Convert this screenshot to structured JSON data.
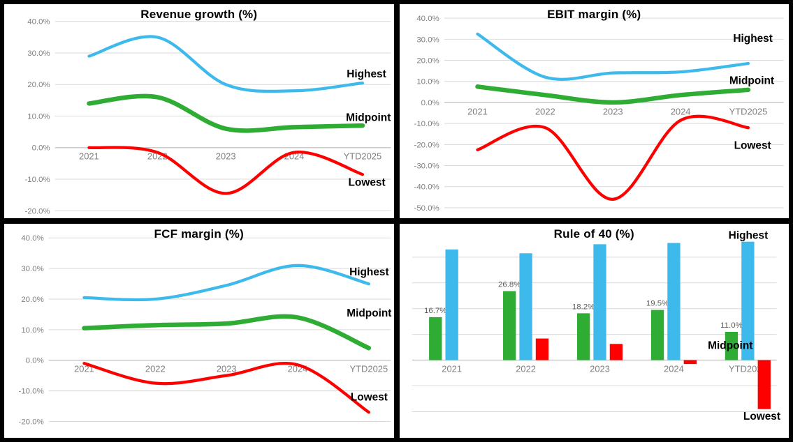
{
  "page": {
    "background": "#ffffff",
    "frame_color": "#000000"
  },
  "palette": {
    "highest": "#3DB9EB",
    "midpoint": "#2EAC34",
    "lowest": "#FF0000",
    "grid_line": "#d9d9d9",
    "zero_line": "#c4c4c4",
    "tick_text": "#7f7f7f",
    "data_label_text": "#595959",
    "title_text": "#000000",
    "series_label_text": "#000000"
  },
  "chart_data": [
    {
      "id": "revenue-growth",
      "type": "line",
      "title": "Revenue growth (%)",
      "categories": [
        "2021",
        "2022",
        "2023",
        "2024",
        "YTD2025"
      ],
      "series": [
        {
          "name": "Highest",
          "color_key": "highest",
          "values": [
            29,
            35,
            20,
            18,
            20.5
          ]
        },
        {
          "name": "Midpoint",
          "color_key": "midpoint",
          "values": [
            14,
            16,
            6,
            6.5,
            7
          ]
        },
        {
          "name": "Lowest",
          "color_key": "lowest",
          "values": [
            0,
            -1.5,
            -14.5,
            -1.5,
            -8.5
          ]
        }
      ],
      "y_tick_values": [
        40,
        30,
        20,
        10,
        0,
        -10,
        -20
      ],
      "y_tick_labels": [
        "40.0%",
        "30.0%",
        "20.0%",
        "10.0%",
        "0.0%",
        "-10.0%",
        "-20.0%"
      ],
      "ylim": [
        -20,
        40
      ],
      "grid": true,
      "y_axis_labels_visible": true,
      "legend_position": "floating-right",
      "series_labels": [
        {
          "text": "Highest",
          "fx": 0.93,
          "fy": 0.326
        },
        {
          "text": "Midpoint",
          "fx": 0.935,
          "fy": 0.53
        },
        {
          "text": "Lowest",
          "fx": 0.931,
          "fy": 0.833
        }
      ]
    },
    {
      "id": "ebit-margin",
      "type": "line",
      "title": "EBIT margin (%)",
      "categories": [
        "2021",
        "2022",
        "2023",
        "2024",
        "YTD2025"
      ],
      "series": [
        {
          "name": "Highest",
          "color_key": "highest",
          "values": [
            32.5,
            12,
            14,
            14.5,
            18.5
          ]
        },
        {
          "name": "Midpoint",
          "color_key": "midpoint",
          "values": [
            7.5,
            3.5,
            0,
            3.5,
            6
          ]
        },
        {
          "name": "Lowest",
          "color_key": "lowest",
          "values": [
            -22.5,
            -12,
            -46,
            -8.5,
            -12
          ]
        }
      ],
      "y_tick_values": [
        40,
        30,
        20,
        10,
        0,
        -10,
        -20,
        -30,
        -40,
        -50
      ],
      "y_tick_labels": [
        "40.0%",
        "30.0%",
        "20.0%",
        "10.0%",
        "0.0%",
        "-10.0%",
        "-20.0%",
        "-30.0%",
        "-40.0%",
        "-50.0%"
      ],
      "ylim": [
        -50,
        40
      ],
      "grid": true,
      "y_axis_labels_visible": true,
      "legend_position": "floating-right",
      "series_labels": [
        {
          "text": "Highest",
          "fx": 0.907,
          "fy": 0.16
        },
        {
          "text": "Midpoint",
          "fx": 0.904,
          "fy": 0.357
        },
        {
          "text": "Lowest",
          "fx": 0.906,
          "fy": 0.66
        }
      ]
    },
    {
      "id": "fcf-margin",
      "type": "line",
      "title": "FCF margin (%)",
      "categories": [
        "2021",
        "2022",
        "2023",
        "2024",
        "YTD2025"
      ],
      "series": [
        {
          "name": "Highest",
          "color_key": "highest",
          "values": [
            20.5,
            20,
            24.5,
            31,
            25
          ]
        },
        {
          "name": "Midpoint",
          "color_key": "midpoint",
          "values": [
            10.5,
            11.5,
            12,
            14,
            4
          ]
        },
        {
          "name": "Lowest",
          "color_key": "lowest",
          "values": [
            -1,
            -7.5,
            -5,
            -1.5,
            -17
          ]
        }
      ],
      "y_tick_values": [
        40,
        30,
        20,
        10,
        0,
        -10,
        -20
      ],
      "y_tick_labels": [
        "40.0%",
        "30.0%",
        "20.0%",
        "10.0%",
        "0.0%",
        "-10.0%",
        "-20.0%"
      ],
      "ylim": [
        -20,
        40
      ],
      "grid": true,
      "y_axis_labels_visible": true,
      "legend_position": "floating-right",
      "series_labels": [
        {
          "text": "Highest",
          "fx": 0.937,
          "fy": 0.225
        },
        {
          "text": "Midpoint",
          "fx": 0.937,
          "fy": 0.417
        },
        {
          "text": "Lowest",
          "fx": 0.937,
          "fy": 0.809
        }
      ]
    },
    {
      "id": "rule-of-40",
      "type": "bar",
      "title": "Rule of 40 (%)",
      "categories": [
        "2021",
        "2022",
        "2023",
        "2024",
        "YTD2025"
      ],
      "series": [
        {
          "name": "Midpoint",
          "color_key": "midpoint",
          "values": [
            16.7,
            26.8,
            18.2,
            19.5,
            11.0
          ],
          "data_labels": [
            "16.7%",
            "26.8%",
            "18.2%",
            "19.5%",
            "11.0%"
          ]
        },
        {
          "name": "Highest",
          "color_key": "highest",
          "values": [
            43,
            41.5,
            45,
            45.5,
            46
          ]
        },
        {
          "name": "Lowest",
          "color_key": "lowest",
          "values": [
            null,
            8.4,
            6.3,
            -1.5,
            -19
          ]
        }
      ],
      "y_tick_values": [
        40,
        30,
        20,
        10,
        0,
        -10,
        -20
      ],
      "y_tick_labels": [],
      "ylim": [
        -20,
        46
      ],
      "grid": true,
      "y_axis_labels_visible": false,
      "legend_position": "floating-right",
      "series_labels": [
        {
          "text": "Highest",
          "fx": 0.895,
          "fy": 0.054
        },
        {
          "text": "Midpoint",
          "fx": 0.849,
          "fy": 0.568
        },
        {
          "text": "Lowest",
          "fx": 0.93,
          "fy": 0.899
        }
      ]
    }
  ]
}
